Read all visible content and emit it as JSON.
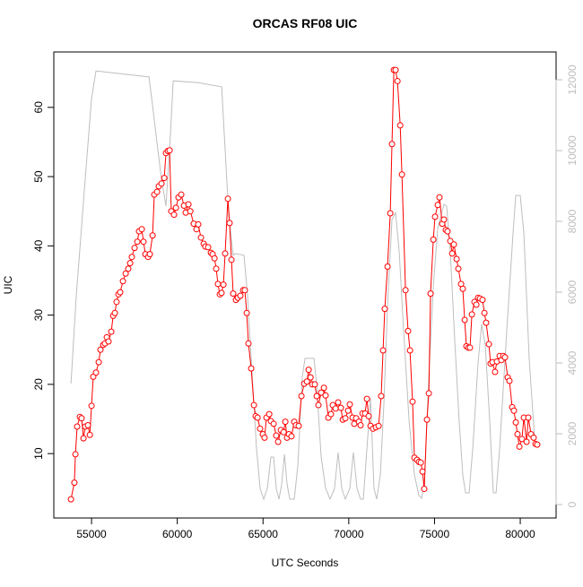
{
  "chart_data": {
    "type": "line",
    "title": "ORCAS RF08 UIC",
    "xlabel": "UTC Seconds",
    "ylabel": "UIC",
    "xlim": [
      52800,
      82090
    ],
    "ylim": [
      0.7,
      68.0
    ],
    "y2lim": [
      -380,
      12785
    ],
    "xticks": [
      55000,
      60000,
      65000,
      70000,
      75000,
      80000
    ],
    "yticks": [
      10,
      20,
      30,
      40,
      50,
      60
    ],
    "y2ticks": [
      0,
      2000,
      4000,
      6000,
      8000,
      10000,
      12000
    ],
    "series": [
      {
        "color": "#ff0000",
        "markers": true,
        "x": [
          53800,
          54000,
          54060,
          54160,
          54320,
          54420,
          54530,
          54630,
          54790,
          54900,
          55000,
          55100,
          55260,
          55420,
          55520,
          55680,
          55780,
          55890,
          55990,
          56150,
          56260,
          56360,
          56460,
          56570,
          56670,
          56830,
          56990,
          57140,
          57250,
          57350,
          57510,
          57670,
          57770,
          57930,
          58030,
          58140,
          58300,
          58400,
          58560,
          58660,
          58820,
          58920,
          59080,
          59240,
          59340,
          59450,
          59550,
          59650,
          59810,
          59920,
          60070,
          60230,
          60390,
          60490,
          60650,
          60760,
          60960,
          61120,
          61220,
          61380,
          61540,
          61640,
          61800,
          61960,
          62060,
          62170,
          62270,
          62370,
          62480,
          62580,
          62690,
          62790,
          62950,
          63050,
          63160,
          63260,
          63420,
          63530,
          63680,
          63840,
          63940,
          64050,
          64150,
          64310,
          64470,
          64570,
          64680,
          64830,
          64990,
          65090,
          65200,
          65360,
          65460,
          65620,
          65770,
          65880,
          66040,
          66200,
          66300,
          66400,
          66510,
          66660,
          66820,
          66920,
          67080,
          67240,
          67400,
          67560,
          67660,
          67770,
          67870,
          68020,
          68130,
          68230,
          68390,
          68550,
          68650,
          68810,
          68960,
          69070,
          69230,
          69380,
          69540,
          69650,
          69800,
          69960,
          70060,
          70220,
          70320,
          70430,
          70590,
          70690,
          70800,
          70950,
          71060,
          71160,
          71270,
          71420,
          71580,
          71740,
          71890,
          72000,
          72100,
          72260,
          72420,
          72520,
          72630,
          72730,
          72840,
          73000,
          73100,
          73310,
          73460,
          73570,
          73720,
          73830,
          73980,
          74090,
          74200,
          74300,
          74400,
          74560,
          74670,
          74770,
          74930,
          75030,
          75190,
          75290,
          75450,
          75550,
          75660,
          75760,
          75920,
          76030,
          76130,
          76290,
          76390,
          76550,
          76650,
          76760,
          76860,
          76970,
          77070,
          77180,
          77330,
          77440,
          77540,
          77650,
          77800,
          77910,
          78010,
          78170,
          78270,
          78380,
          78530,
          78640,
          78800,
          78900,
          79010,
          79110,
          79270,
          79370,
          79530,
          79630,
          79740,
          79840,
          79950,
          80100,
          80210,
          80370,
          80470,
          80630,
          80780,
          80890,
          80990
        ],
        "values": [
          3.4,
          5.8,
          9.9,
          13.9,
          15.3,
          15.1,
          12.2,
          13.9,
          14.1,
          12.7,
          16.9,
          21.1,
          21.7,
          23.2,
          25,
          25.7,
          25.9,
          26.8,
          26.2,
          27.6,
          29.9,
          30.3,
          31.9,
          33,
          33.3,
          34.9,
          36,
          36.7,
          37.5,
          38.4,
          39.7,
          40.6,
          42.1,
          42.4,
          40.6,
          38.8,
          38.4,
          38.8,
          41.5,
          47.4,
          47.8,
          48.6,
          49,
          49.8,
          53.4,
          53.7,
          53.8,
          45,
          44.5,
          45.5,
          47,
          47.4,
          45.8,
          44.8,
          46,
          45,
          43.2,
          42.4,
          43.1,
          41.2,
          40.3,
          39.9,
          39.8,
          39,
          38.8,
          38.2,
          36.7,
          34.5,
          33,
          33.2,
          34.4,
          38.9,
          46.8,
          43.3,
          38,
          33.1,
          32.2,
          32.5,
          32.8,
          33.6,
          33.6,
          30.3,
          25.9,
          22.3,
          17,
          15.4,
          15.2,
          13.6,
          12.8,
          12.3,
          15.2,
          15.7,
          14.7,
          14.3,
          12.6,
          11.7,
          13.4,
          13.1,
          14.6,
          12.3,
          12.8,
          12.5,
          14.6,
          14.1,
          14,
          18.3,
          20.1,
          20.4,
          22.1,
          21,
          20,
          20,
          18.3,
          17,
          18.8,
          19.5,
          18.4,
          15.2,
          15.7,
          17,
          16.5,
          17.4,
          16.6,
          14.9,
          15.1,
          16.2,
          17.1,
          15.2,
          14.3,
          15.1,
          14.6,
          14.1,
          15.8,
          15.8,
          17.9,
          15.4,
          14,
          13.6,
          13.8,
          14,
          18.3,
          24.9,
          30.9,
          37,
          44.7,
          54.7,
          65.4,
          65.4,
          63.8,
          57.4,
          50.3,
          33.6,
          27.7,
          24.9,
          17.5,
          9.4,
          9.1,
          8.8,
          8.7,
          7.4,
          4.9,
          14.9,
          18.7,
          33.1,
          40.9,
          44.2,
          45.9,
          47,
          43.2,
          43.8,
          42.3,
          42.1,
          40.7,
          38.9,
          40.2,
          38.1,
          36.7,
          34.5,
          33.8,
          29.3,
          25.5,
          25.3,
          25.3,
          30.1,
          31.9,
          31.5,
          32.5,
          32.4,
          32.2,
          30.3,
          28.9,
          25.8,
          23,
          23.2,
          21.8,
          23.3,
          24.1,
          23.5,
          24.1,
          23.9,
          21,
          20.5,
          16.7,
          16.2,
          14.5,
          12.8,
          11,
          12.1,
          15.2,
          11.7,
          15.2,
          12.8,
          12.3,
          11.4,
          11.3
        ]
      },
      {
        "color": "#bebebe",
        "axis": "y2",
        "markers": false,
        "x": [
          53800,
          54110,
          54630,
          55000,
          55260,
          58350,
          58560,
          58820,
          59080,
          59340,
          59600,
          59760,
          61170,
          62590,
          62740,
          63000,
          63260,
          63370,
          63890,
          64100,
          64310,
          64620,
          64830,
          65040,
          65250,
          65460,
          65620,
          65770,
          65930,
          66090,
          66250,
          66400,
          66560,
          66820,
          67030,
          67290,
          67450,
          67970,
          68130,
          68390,
          68650,
          68910,
          69170,
          69380,
          69590,
          69800,
          70060,
          70270,
          70480,
          70690,
          70850,
          71060,
          71270,
          71470,
          71630,
          71840,
          72050,
          72260,
          72520,
          72730,
          72940,
          73200,
          73520,
          73830,
          74090,
          74250,
          74400,
          74670,
          74930,
          75190,
          75550,
          75710,
          75920,
          76180,
          76440,
          76650,
          76810,
          77020,
          77230,
          77540,
          77750,
          77960,
          78220,
          78430,
          78590,
          78800,
          79210,
          79580,
          79740,
          80000,
          80210,
          80520,
          80840
        ],
        "values": [
          3418,
          5900,
          9190,
          11470,
          12250,
          12080,
          11270,
          10200,
          9190,
          8430,
          10450,
          11970,
          11920,
          11800,
          10460,
          8180,
          7040,
          7090,
          7040,
          5900,
          4130,
          1590,
          456,
          152,
          456,
          1340,
          1340,
          456,
          152,
          582,
          1420,
          582,
          152,
          152,
          1090,
          3620,
          4130,
          4130,
          3370,
          1340,
          456,
          152,
          456,
          1470,
          456,
          152,
          456,
          1470,
          456,
          152,
          152,
          1590,
          2990,
          456,
          152,
          835,
          2860,
          5650,
          8050,
          8250,
          7160,
          4890,
          2350,
          835,
          253,
          177,
          582,
          3620,
          6150,
          7800,
          8480,
          8430,
          7160,
          4630,
          2350,
          835,
          329,
          329,
          1590,
          4000,
          5090,
          4510,
          2350,
          329,
          329,
          1590,
          4890,
          7670,
          8730,
          8730,
          7670,
          4130,
          1850
        ]
      }
    ]
  }
}
